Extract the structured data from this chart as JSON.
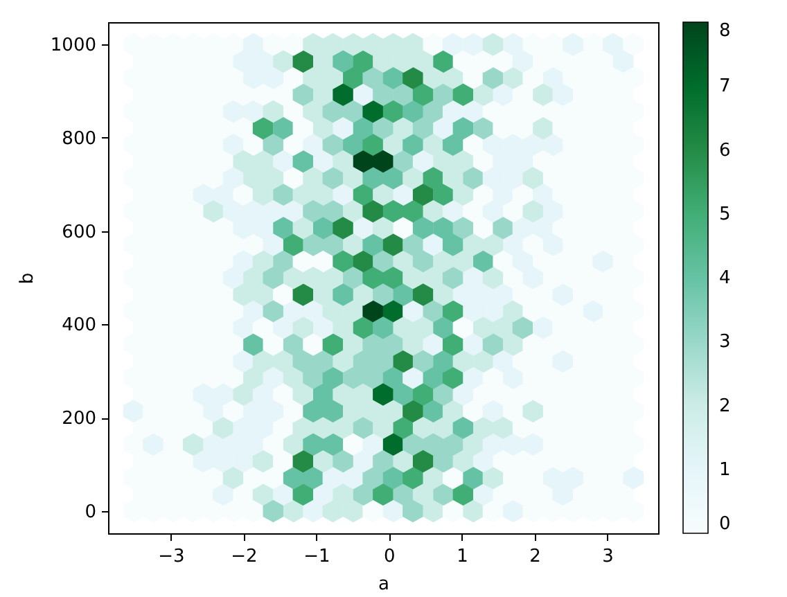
{
  "chart_data": {
    "type": "scatter",
    "xlabel": "a",
    "ylabel": "b",
    "xlim": [
      -3.86,
      3.7
    ],
    "xticks": [
      -3,
      -2,
      -1,
      0,
      1,
      2,
      3
    ],
    "ylim": [
      -48,
      1048
    ],
    "yticks": [
      0,
      200,
      400,
      600,
      800,
      1000
    ],
    "clim": [
      0,
      8
    ],
    "cticks": [
      0,
      1,
      2,
      3,
      4,
      5,
      6,
      7,
      8
    ],
    "x": [
      -3.51,
      -3.24,
      -2.96,
      -2.69,
      -2.41,
      -2.14,
      -1.86,
      -1.59,
      -1.31,
      -1.04,
      -0.77,
      -0.49,
      -0.22,
      0.06,
      0.33,
      0.61,
      0.88,
      1.16,
      1.43,
      1.71,
      1.98,
      2.26,
      2.53,
      2.81,
      3.08,
      3.36,
      -3.37,
      -3.1,
      -2.83,
      -2.55,
      -2.28,
      -2.0,
      -1.73,
      -1.45,
      -1.18,
      -0.9,
      -0.63,
      -0.35,
      -0.08,
      0.2,
      0.47,
      0.75,
      1.02,
      1.3,
      1.57,
      1.84,
      2.12,
      2.39,
      2.67,
      2.94,
      3.22,
      -3.51,
      -3.24,
      -2.96,
      -2.69,
      -2.41,
      -2.14,
      -1.86,
      -1.59,
      -1.31,
      -1.04,
      -0.77,
      -0.49,
      -0.22,
      0.06,
      0.33,
      0.61,
      0.88,
      1.16,
      1.43,
      1.71,
      1.98,
      2.26,
      2.53,
      2.81,
      3.08,
      3.36,
      -3.37,
      -3.1,
      -2.83,
      -2.55,
      -2.28,
      -2.0,
      -1.73,
      -1.45,
      -1.18,
      -0.9,
      -0.63,
      -0.35,
      -0.08,
      0.2,
      0.47,
      0.75,
      1.02,
      1.3,
      1.57,
      1.84,
      2.12,
      2.39,
      2.67,
      2.94,
      3.22,
      -3.51,
      -3.24,
      -2.96,
      -2.69,
      -2.41,
      -2.14,
      -1.86,
      -1.59,
      -1.31,
      -1.04,
      -0.77,
      -0.49,
      -0.22,
      0.06,
      0.33,
      0.61,
      0.88,
      1.16,
      1.43,
      1.71,
      1.98,
      2.26,
      2.53,
      2.81,
      3.08,
      3.36,
      -3.37,
      -3.1,
      -2.83,
      -2.55,
      -2.28,
      -2.0,
      -1.73,
      -1.45,
      -1.18,
      -0.9,
      -0.63,
      -0.35,
      -0.08,
      0.2,
      0.47,
      0.75,
      1.02,
      1.3,
      1.57,
      1.84,
      2.12,
      2.39,
      2.67,
      2.94,
      3.22,
      -3.51,
      -3.24,
      -2.96,
      -2.69,
      -2.41,
      -2.14,
      -1.86,
      -1.59,
      -1.31,
      -1.04,
      -0.77,
      -0.49,
      -0.22,
      0.06,
      0.33,
      0.61,
      0.88,
      1.16,
      1.43,
      1.71,
      1.98,
      2.26,
      2.53,
      2.81,
      3.08,
      3.36,
      -3.37,
      -3.1,
      -2.83,
      -2.55,
      -2.28,
      -2.0,
      -1.73,
      -1.45,
      -1.18,
      -0.9,
      -0.63,
      -0.35,
      -0.08,
      0.2,
      0.47,
      0.75,
      1.02,
      1.3,
      1.57,
      1.84,
      2.12,
      2.39,
      2.67,
      2.94,
      3.22,
      -3.51,
      -3.24,
      -2.96,
      -2.69,
      -2.41,
      -2.14,
      -1.86,
      -1.59,
      -1.31,
      -1.04,
      -0.77,
      -0.49,
      -0.22,
      0.06,
      0.33,
      0.61,
      0.88,
      1.16,
      1.43,
      1.71,
      1.98,
      2.26,
      2.53,
      2.81,
      3.08,
      3.36,
      -3.37,
      -3.1,
      -2.83,
      -2.55,
      -2.28,
      -2.0,
      -1.73,
      -1.45,
      -1.18,
      -0.9,
      -0.63,
      -0.35,
      -0.08,
      0.2,
      0.47,
      0.75,
      1.02,
      1.3,
      1.57,
      1.84,
      2.12,
      2.39,
      2.67,
      2.94,
      3.22,
      -3.51,
      -3.24,
      -2.96,
      -2.69,
      -2.41,
      -2.14,
      -1.86,
      -1.59,
      -1.31,
      -1.04,
      -0.77,
      -0.49,
      -0.22,
      0.06,
      0.33,
      0.61,
      0.88,
      1.16,
      1.43,
      1.71,
      1.98,
      2.26,
      2.53,
      2.81,
      3.08,
      3.36,
      -3.37,
      -3.1,
      -2.83,
      -2.55,
      -2.28,
      -2.0,
      -1.73,
      -1.45,
      -1.18,
      -0.9,
      -0.63,
      -0.35,
      -0.08,
      0.2,
      0.47,
      0.75,
      1.02,
      1.3,
      1.57,
      1.84,
      2.12,
      2.39,
      2.67,
      2.94,
      3.22,
      -3.51,
      -3.24,
      -2.96,
      -2.69,
      -2.41,
      -2.14,
      -1.86,
      -1.59,
      -1.31,
      -1.04,
      -0.77,
      -0.49,
      -0.22,
      0.06,
      0.33,
      0.61,
      0.88,
      1.16,
      1.43,
      1.71,
      1.98,
      2.26,
      2.53,
      2.81,
      3.08,
      3.36,
      -3.37,
      -3.1,
      -2.83,
      -2.55,
      -2.28,
      -2.0,
      -1.73,
      -1.45,
      -1.18,
      -0.9,
      -0.63,
      -0.35,
      -0.08,
      0.2,
      0.47,
      0.75,
      1.02,
      1.3,
      1.57,
      1.84,
      2.12,
      2.39,
      2.67,
      2.94,
      3.22,
      -3.51,
      -3.24,
      -2.96,
      -2.69,
      -2.41,
      -2.14,
      -1.86,
      -1.59,
      -1.31,
      -1.04,
      -0.77,
      -0.49,
      -0.22,
      0.06,
      0.33,
      0.61,
      0.88,
      1.16,
      1.43,
      1.71,
      1.98,
      2.26,
      2.53,
      2.81,
      3.08,
      3.36,
      -3.37,
      -3.1,
      -2.83,
      -2.55,
      -2.28,
      -2.0,
      -1.73,
      -1.45,
      -1.18,
      -0.9,
      -0.63,
      -0.35,
      -0.08,
      0.2,
      0.47,
      0.75,
      1.02,
      1.3,
      1.57,
      1.84,
      2.12,
      2.39,
      2.67,
      2.94,
      3.22,
      -3.51,
      -3.24,
      -2.96,
      -2.69,
      -2.41,
      -2.14,
      -1.86,
      -1.59,
      -1.31,
      -1.04,
      -0.77,
      -0.49,
      -0.22,
      0.06,
      0.33,
      0.61,
      0.88,
      1.16,
      1.43,
      1.71,
      1.98,
      2.26,
      2.53,
      2.81,
      3.08,
      3.36,
      -3.37,
      -3.1,
      -2.83,
      -2.55,
      -2.28,
      -2.0,
      -1.73,
      -1.45,
      -1.18,
      -0.9,
      -0.63,
      -0.35,
      -0.08,
      0.2,
      0.47,
      0.75,
      1.02,
      1.3,
      1.57,
      1.84,
      2.12,
      2.39,
      2.67,
      2.94,
      3.22,
      -3.51,
      -3.24,
      -2.96,
      -2.69,
      -2.41,
      -2.14,
      -1.86,
      -1.59,
      -1.31,
      -1.04,
      -0.77,
      -0.49,
      -0.22,
      0.06,
      0.33,
      0.61,
      0.88,
      1.16,
      1.43,
      1.71,
      1.98,
      2.26,
      2.53,
      2.81,
      3.08,
      3.36,
      -3.37,
      -3.1,
      -2.83,
      -2.55,
      -2.28,
      -2.0,
      -1.73,
      -1.45,
      -1.18,
      -0.9,
      -0.63,
      -0.35,
      -0.08,
      0.2,
      0.47,
      0.75,
      1.02,
      1.3,
      1.57,
      1.84,
      2.12,
      2.39,
      2.67,
      2.94,
      3.22,
      -3.51,
      -3.24,
      -2.96,
      -2.69,
      -2.41,
      -2.14,
      -1.86,
      -1.59,
      -1.31,
      -1.04,
      -0.77,
      -0.49,
      -0.22,
      0.06,
      0.33,
      0.61,
      0.88,
      1.16,
      1.43,
      1.71,
      1.98,
      2.26,
      2.53,
      2.81,
      3.08,
      3.36,
      -3.37,
      -3.1,
      -2.83,
      -2.55,
      -2.28,
      -2.0,
      -1.73,
      -1.45,
      -1.18,
      -0.9,
      -0.63,
      -0.35,
      -0.08,
      0.2,
      0.47,
      0.75,
      1.02,
      1.3,
      1.57,
      1.84,
      2.12,
      2.39,
      2.67,
      2.94,
      3.22,
      -3.51,
      -3.24,
      -2.96,
      -2.69,
      -2.41,
      -2.14,
      -1.86,
      -1.59,
      -1.31,
      -1.04,
      -0.77,
      -0.49,
      -0.22,
      0.06,
      0.33,
      0.61,
      0.88,
      1.16,
      1.43,
      1.71,
      1.98,
      2.26,
      2.53,
      2.81,
      3.08,
      3.36,
      -3.37,
      -3.1,
      -2.83,
      -2.55,
      -2.28,
      -2.0,
      -1.73,
      -1.45,
      -1.18,
      -0.9,
      -0.63,
      -0.35,
      -0.08,
      0.2,
      0.47,
      0.75,
      1.02,
      1.3,
      1.57,
      1.84,
      2.12,
      2.39,
      2.67,
      2.94,
      3.22,
      -3.51,
      -3.24,
      -2.96,
      -2.69,
      -2.41,
      -2.14,
      -1.86,
      -1.59,
      -1.31,
      -1.04,
      -0.77,
      -0.49,
      -0.22,
      0.06,
      0.33,
      0.61,
      0.88,
      1.16,
      1.43,
      1.71,
      1.98,
      2.26,
      2.53,
      2.81,
      3.08,
      3.36,
      -3.37,
      -3.1,
      -2.83,
      -2.55,
      -2.28,
      -2.0,
      -1.73,
      -1.45,
      -1.18,
      -0.9,
      -0.63,
      -0.35,
      -0.08,
      0.2,
      0.47,
      0.75,
      1.02,
      1.3,
      1.57,
      1.84,
      2.12,
      2.39,
      2.67,
      2.94,
      3.22,
      -3.51,
      -3.24,
      -2.96,
      -2.69,
      -2.41,
      -2.14,
      -1.86,
      -1.59,
      -1.31,
      -1.04,
      -0.77,
      -0.49,
      -0.22,
      0.06,
      0.33,
      0.61,
      0.88,
      1.16,
      1.43,
      1.71,
      1.98,
      2.26,
      2.53,
      2.81,
      3.08,
      3.36,
      -3.37,
      -3.1,
      -2.83,
      -2.55,
      -2.28,
      -2.0,
      -1.73,
      -1.45,
      -1.18,
      -0.9,
      -0.63,
      -0.35,
      -0.08,
      0.2,
      0.47,
      0.75,
      1.02,
      1.3,
      1.57,
      1.84,
      2.12,
      2.39,
      2.67,
      2.94,
      3.22,
      -3.51,
      -3.24,
      -2.96,
      -2.69,
      -2.41,
      -2.14,
      -1.86,
      -1.59,
      -1.31,
      -1.04,
      -0.77,
      -0.49,
      -0.22,
      0.06,
      0.33,
      0.61,
      0.88,
      1.16,
      1.43,
      1.71,
      1.98,
      2.26,
      2.53,
      2.81,
      3.08,
      3.36
    ],
    "values": [
      0,
      0,
      0,
      0,
      0,
      0,
      0,
      0,
      0,
      0,
      0,
      0,
      0,
      0,
      0,
      0,
      0,
      0,
      0,
      0,
      0,
      0,
      0,
      0,
      0,
      0,
      36,
      36,
      36,
      36,
      36,
      36,
      36,
      36,
      36,
      36,
      36,
      36,
      36,
      36,
      36,
      36,
      36,
      36,
      36,
      36,
      36,
      36,
      36,
      36,
      36,
      71,
      71,
      71,
      71,
      71,
      71,
      71,
      71,
      71,
      71,
      71,
      71,
      71,
      71,
      71,
      71,
      71,
      71,
      71,
      71,
      71,
      71,
      71,
      71,
      71,
      71,
      107,
      107,
      107,
      107,
      107,
      107,
      107,
      107,
      107,
      107,
      107,
      107,
      107,
      107,
      107,
      107,
      107,
      107,
      107,
      107,
      107,
      107,
      107,
      107,
      107,
      143,
      143,
      143,
      143,
      143,
      143,
      143,
      143,
      143,
      143,
      143,
      143,
      143,
      143,
      143,
      143,
      143,
      143,
      143,
      143,
      143,
      143,
      143,
      143,
      143,
      143,
      179,
      179,
      179,
      179,
      179,
      179,
      179,
      179,
      179,
      179,
      179,
      179,
      179,
      179,
      179,
      179,
      179,
      179,
      179,
      179,
      179,
      179,
      179,
      179,
      179,
      214,
      214,
      214,
      214,
      214,
      214,
      214,
      214,
      214,
      214,
      214,
      214,
      214,
      214,
      214,
      214,
      214,
      214,
      214,
      214,
      214,
      214,
      214,
      214,
      214,
      214,
      250,
      250,
      250,
      250,
      250,
      250,
      250,
      250,
      250,
      250,
      250,
      250,
      250,
      250,
      250,
      250,
      250,
      250,
      250,
      250,
      250,
      250,
      250,
      250,
      250,
      286,
      286,
      286,
      286,
      286,
      286,
      286,
      286,
      286,
      286,
      286,
      286,
      286,
      286,
      286,
      286,
      286,
      286,
      286,
      286,
      286,
      286,
      286,
      286,
      286,
      286,
      321,
      321,
      321,
      321,
      321,
      321,
      321,
      321,
      321,
      321,
      321,
      321,
      321,
      321,
      321,
      321,
      321,
      321,
      321,
      321,
      321,
      321,
      321,
      321,
      321,
      357,
      357,
      357,
      357,
      357,
      357,
      357,
      357,
      357,
      357,
      357,
      357,
      357,
      357,
      357,
      357,
      357,
      357,
      357,
      357,
      357,
      357,
      357,
      357,
      357,
      357,
      393,
      393,
      393,
      393,
      393,
      393,
      393,
      393,
      393,
      393,
      393,
      393,
      393,
      393,
      393,
      393,
      393,
      393,
      393,
      393,
      393,
      393,
      393,
      393,
      393,
      429,
      429,
      429,
      429,
      429,
      429,
      429,
      429,
      429,
      429,
      429,
      429,
      429,
      429,
      429,
      429,
      429,
      429,
      429,
      429,
      429,
      429,
      429,
      429,
      429,
      429,
      464,
      464,
      464,
      464,
      464,
      464,
      464,
      464,
      464,
      464,
      464,
      464,
      464,
      464,
      464,
      464,
      464,
      464,
      464,
      464,
      464,
      464,
      464,
      464,
      464,
      500,
      500,
      500,
      500,
      500,
      500,
      500,
      500,
      500,
      500,
      500,
      500,
      500,
      500,
      500,
      500,
      500,
      500,
      500,
      500,
      500,
      500,
      500,
      500,
      500,
      500,
      536,
      536,
      536,
      536,
      536,
      536,
      536,
      536,
      536,
      536,
      536,
      536,
      536,
      536,
      536,
      536,
      536,
      536,
      536,
      536,
      536,
      536,
      536,
      536,
      536,
      571,
      571,
      571,
      571,
      571,
      571,
      571,
      571,
      571,
      571,
      571,
      571,
      571,
      571,
      571,
      571,
      571,
      571,
      571,
      571,
      571,
      571,
      571,
      571,
      571,
      571,
      607,
      607,
      607,
      607,
      607,
      607,
      607,
      607,
      607,
      607,
      607,
      607,
      607,
      607,
      607,
      607,
      607,
      607,
      607,
      607,
      607,
      607,
      607,
      607,
      607,
      643,
      643,
      643,
      643,
      643,
      643,
      643,
      643,
      643,
      643,
      643,
      643,
      643,
      643,
      643,
      643,
      643,
      643,
      643,
      643,
      643,
      643,
      643,
      643,
      643,
      643,
      679,
      679,
      679,
      679,
      679,
      679,
      679,
      679,
      679,
      679,
      679,
      679,
      679,
      679,
      679,
      679,
      679,
      679,
      679,
      679,
      679,
      679,
      679,
      679,
      679,
      714,
      714,
      714,
      714,
      714,
      714,
      714,
      714,
      714,
      714,
      714,
      714,
      714,
      714,
      714,
      714,
      714,
      714,
      714,
      714,
      714,
      714,
      714,
      714,
      714,
      714,
      750,
      750,
      750,
      750,
      750,
      750,
      750,
      750,
      750,
      750,
      750,
      750,
      750,
      750,
      750,
      750,
      750,
      750,
      750,
      750,
      750,
      750,
      750,
      750,
      750,
      786,
      786,
      786,
      786,
      786,
      786,
      786,
      786,
      786,
      786,
      786,
      786,
      786,
      786,
      786,
      786,
      786,
      786,
      786,
      786,
      786,
      786,
      786,
      786,
      786,
      786,
      821,
      821,
      821,
      821,
      821,
      821,
      821,
      821,
      821,
      821,
      821,
      821,
      821,
      821,
      821,
      821,
      821,
      821,
      821,
      821,
      821,
      821,
      821,
      821,
      821,
      857,
      857,
      857,
      857,
      857,
      857,
      857,
      857,
      857,
      857,
      857,
      857,
      857,
      857,
      857,
      857,
      857,
      857,
      857,
      857,
      857,
      857,
      857,
      857,
      857,
      857,
      893,
      893,
      893,
      893,
      893,
      893,
      893,
      893,
      893,
      893,
      893,
      893,
      893,
      893,
      893,
      893,
      893,
      893,
      893,
      893,
      893,
      893,
      893,
      893,
      893,
      929,
      929,
      929,
      929,
      929,
      929,
      929,
      929,
      929,
      929,
      929,
      929,
      929,
      929,
      929,
      929,
      929,
      929,
      929,
      929,
      929,
      929,
      929,
      929,
      929,
      929,
      964,
      964,
      964,
      964,
      964,
      964,
      964,
      964,
      964,
      964,
      964,
      964,
      964,
      964,
      964,
      964,
      964,
      964,
      964,
      964,
      964,
      964,
      964,
      964,
      964,
      1000,
      1000,
      1000,
      1000,
      1000,
      1000,
      1000,
      1000,
      1000,
      1000,
      1000,
      1000,
      1000,
      1000,
      1000,
      1000,
      1000,
      1000,
      1000,
      1000,
      1000,
      1000,
      1000,
      1000,
      1000,
      1000
    ],
    "cvalues": [
      0,
      0,
      0,
      0,
      0,
      0,
      0,
      3,
      2,
      1,
      2,
      2,
      0,
      1,
      3,
      2,
      0,
      2,
      0,
      1,
      0,
      0,
      0,
      0,
      0,
      0,
      0,
      0,
      0,
      0,
      1,
      0,
      2,
      1,
      5,
      1,
      2,
      3,
      5,
      3,
      2,
      3,
      5,
      1,
      0,
      0,
      0,
      1,
      0,
      0,
      0,
      0,
      0,
      0,
      0,
      0,
      2,
      0,
      0,
      4,
      4,
      1,
      1,
      3,
      4,
      5,
      2,
      0,
      4,
      2,
      0,
      0,
      1,
      1,
      0,
      0,
      1,
      0,
      0,
      0,
      1,
      1,
      1,
      2,
      0,
      6,
      2,
      3,
      1,
      3,
      2,
      6,
      3,
      2,
      1,
      0,
      0,
      0,
      0,
      0,
      0,
      0,
      0,
      1,
      0,
      2,
      1,
      1,
      1,
      0,
      2,
      4,
      4,
      0,
      1,
      7,
      3,
      3,
      3,
      2,
      1,
      1,
      1,
      0,
      0,
      0,
      0,
      0,
      0,
      0,
      0,
      0,
      2,
      1,
      1,
      0,
      2,
      2,
      2,
      3,
      2,
      5,
      2,
      2,
      4,
      2,
      2,
      0,
      0,
      0,
      0,
      0,
      0,
      1,
      0,
      0,
      0,
      1,
      0,
      1,
      1,
      0,
      4,
      4,
      2,
      2,
      2,
      6,
      4,
      2,
      0,
      1,
      0,
      2,
      0,
      0,
      0,
      0,
      0,
      0,
      0,
      0,
      1,
      1,
      2,
      1,
      0,
      2,
      4,
      2,
      2,
      7,
      4,
      5,
      3,
      1,
      0,
      0,
      0,
      0,
      0,
      0,
      0,
      0,
      0,
      0,
      0,
      0,
      0,
      0,
      2,
      1,
      2,
      3,
      4,
      3,
      3,
      4,
      1,
      4,
      5,
      1,
      0,
      1,
      0,
      0,
      0,
      0,
      0,
      0,
      0,
      0,
      0,
      0,
      0,
      1,
      2,
      2,
      3,
      3,
      2,
      3,
      3,
      6,
      3,
      4,
      2,
      2,
      1,
      0,
      0,
      1,
      0,
      0,
      0,
      0,
      0,
      0,
      0,
      0,
      0,
      4,
      0,
      3,
      0,
      5,
      2,
      3,
      3,
      2,
      1,
      5,
      1,
      3,
      2,
      0,
      0,
      0,
      0,
      0,
      0,
      0,
      0,
      0,
      0,
      0,
      1,
      0,
      1,
      2,
      1,
      2,
      5,
      4,
      2,
      2,
      4,
      0,
      2,
      2,
      3,
      1,
      0,
      0,
      0,
      0,
      0,
      0,
      0,
      0,
      0,
      0,
      1,
      3,
      1,
      1,
      2,
      2,
      8,
      7,
      1,
      3,
      5,
      1,
      1,
      2,
      0,
      0,
      0,
      1,
      0,
      0,
      0,
      0,
      0,
      0,
      0,
      2,
      2,
      0,
      6,
      2,
      4,
      2,
      3,
      4,
      6,
      2,
      1,
      1,
      1,
      0,
      0,
      1,
      0,
      0,
      0,
      0,
      0,
      0,
      0,
      0,
      1,
      2,
      3,
      2,
      2,
      2,
      3,
      5,
      5,
      2,
      2,
      3,
      1,
      2,
      0,
      1,
      0,
      0,
      0,
      0,
      0,
      0,
      0,
      0,
      0,
      0,
      1,
      2,
      3,
      0,
      0,
      5,
      6,
      3,
      2,
      3,
      2,
      2,
      4,
      0,
      1,
      0,
      0,
      0,
      1,
      0,
      0,
      0,
      0,
      0,
      0,
      0,
      0,
      1,
      5,
      3,
      3,
      2,
      4,
      6,
      3,
      1,
      4,
      2,
      2,
      1,
      0,
      1,
      0,
      0,
      0,
      0,
      0,
      0,
      0,
      0,
      0,
      1,
      1,
      4,
      2,
      4,
      6,
      1,
      2,
      0,
      4,
      4,
      3,
      0,
      3,
      1,
      1,
      0,
      0,
      0,
      0,
      0,
      0,
      0,
      0,
      2,
      1,
      1,
      1,
      1,
      3,
      3,
      2,
      6,
      5,
      5,
      2,
      1,
      0,
      1,
      0,
      2,
      1,
      0,
      0,
      0,
      0,
      0,
      0,
      0,
      1,
      1,
      0,
      2,
      3,
      2,
      2,
      1,
      5,
      2,
      1,
      6,
      5,
      2,
      0,
      1,
      0,
      1,
      0,
      0,
      0,
      0,
      0,
      0,
      0,
      0,
      0,
      1,
      2,
      2,
      0,
      2,
      3,
      2,
      4,
      4,
      2,
      5,
      2,
      3,
      1,
      1,
      2,
      0,
      0,
      0,
      0,
      0,
      0,
      0,
      0,
      0,
      0,
      2,
      2,
      1,
      4,
      1,
      2,
      8,
      8,
      3,
      1,
      2,
      2,
      0,
      1,
      1,
      0,
      0,
      0,
      0,
      0,
      0,
      0,
      0,
      0,
      0,
      1,
      0,
      3,
      0,
      1,
      3,
      4,
      5,
      2,
      4,
      2,
      4,
      0,
      1,
      1,
      1,
      1,
      0,
      0,
      0,
      0,
      0,
      0,
      0,
      0,
      0,
      0,
      5,
      4,
      0,
      2,
      1,
      4,
      3,
      2,
      3,
      1,
      4,
      3,
      0,
      0,
      2,
      0,
      0,
      0,
      0,
      0,
      0,
      0,
      0,
      0,
      1,
      1,
      2,
      0,
      2,
      3,
      3,
      7,
      5,
      4,
      3,
      1,
      1,
      0,
      0,
      0,
      0,
      0,
      0,
      0,
      0,
      0,
      0,
      0,
      0,
      0,
      0,
      0,
      0,
      3,
      2,
      7,
      1,
      3,
      3,
      5,
      3,
      5,
      2,
      1,
      0,
      2,
      1,
      0,
      0,
      0,
      0,
      0,
      0,
      0,
      0,
      0,
      1,
      1,
      0,
      2,
      2,
      5,
      3,
      4,
      6,
      2,
      2,
      0,
      3,
      2,
      0,
      1,
      0,
      0,
      0,
      0,
      0,
      0,
      0,
      0,
      0,
      1,
      1,
      2,
      6,
      2,
      4,
      5,
      2,
      2,
      2,
      5,
      0,
      0,
      0,
      1,
      0,
      0,
      0,
      0,
      1,
      0,
      0,
      0,
      0,
      0,
      0,
      1,
      0,
      0,
      2,
      2,
      2,
      2,
      2,
      2,
      0,
      1,
      1,
      2,
      1,
      0,
      0,
      1,
      0,
      1,
      0
    ]
  }
}
